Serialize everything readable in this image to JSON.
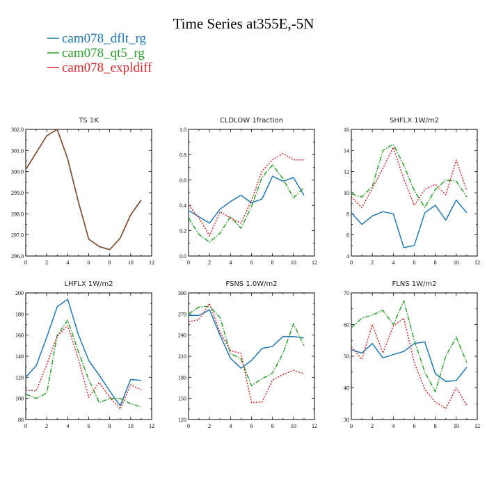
{
  "figure_title": "Time Series at355E,-5N",
  "legend": [
    {
      "label": "cam078_dflt_rg",
      "color": "#1f77b4"
    },
    {
      "label": "cam078_qt5_rg",
      "color": "#2ca02c"
    },
    {
      "label": "cam078_expldiff",
      "color": "#d62728"
    }
  ],
  "chart_data": [
    {
      "type": "line",
      "title": "TS   1K",
      "x": [
        0,
        1,
        2,
        3,
        4,
        5,
        6,
        7,
        8,
        9,
        10,
        11
      ],
      "xlim": [
        0,
        12
      ],
      "xticks": [
        0,
        2,
        4,
        6,
        8,
        10,
        12
      ],
      "ylim": [
        296.0,
        302.0
      ],
      "yticks": [
        296.0,
        297.0,
        298.0,
        299.0,
        300.0,
        301.0,
        302.0
      ],
      "ytick_labels": [
        "296.0",
        "297.0",
        "298.0",
        "299.0",
        "300.0",
        "301.0",
        "302.0"
      ],
      "series": [
        {
          "name": "cam078_dflt_rg",
          "style": "solid",
          "values": [
            300.1,
            300.9,
            301.7,
            302.0,
            300.6,
            298.6,
            296.8,
            296.45,
            296.3,
            296.85,
            297.95,
            298.65
          ]
        },
        {
          "name": "cam078_qt5_rg",
          "style": "dashdot",
          "values": [
            300.1,
            300.9,
            301.7,
            302.0,
            300.6,
            298.6,
            296.8,
            296.45,
            296.3,
            296.85,
            297.95,
            298.65
          ]
        },
        {
          "name": "cam078_expldiff",
          "style": "dotted",
          "values": [
            300.1,
            300.9,
            301.7,
            302.0,
            300.6,
            298.6,
            296.8,
            296.45,
            296.3,
            296.85,
            297.95,
            298.65
          ]
        }
      ]
    },
    {
      "type": "line",
      "title": "CLDLOW   1fraction",
      "x": [
        0,
        1,
        2,
        3,
        4,
        5,
        6,
        7,
        8,
        9,
        10,
        11
      ],
      "xlim": [
        0,
        12
      ],
      "xticks": [
        0,
        2,
        4,
        6,
        8,
        10,
        12
      ],
      "ylim": [
        0.0,
        1.0
      ],
      "yticks": [
        0.0,
        0.2,
        0.4,
        0.6,
        0.8,
        1.0
      ],
      "ytick_labels": [
        "0.0",
        "0.2",
        "0.4",
        "0.6",
        "0.8",
        "1.0"
      ],
      "series": [
        {
          "name": "cam078_dflt_rg",
          "style": "solid",
          "values": [
            0.36,
            0.31,
            0.26,
            0.37,
            0.43,
            0.48,
            0.42,
            0.45,
            0.63,
            0.59,
            0.62,
            0.48
          ]
        },
        {
          "name": "cam078_qt5_rg",
          "style": "dashdot",
          "values": [
            0.3,
            0.17,
            0.11,
            0.18,
            0.31,
            0.22,
            0.39,
            0.62,
            0.72,
            0.61,
            0.46,
            0.54
          ]
        },
        {
          "name": "cam078_expldiff",
          "style": "dotted",
          "values": [
            0.4,
            0.3,
            0.16,
            0.35,
            0.3,
            0.26,
            0.44,
            0.67,
            0.76,
            0.81,
            0.76,
            0.76
          ]
        }
      ]
    },
    {
      "type": "line",
      "title": "SHFLX   1W/m2",
      "x": [
        0,
        1,
        2,
        3,
        4,
        5,
        6,
        7,
        8,
        9,
        10,
        11
      ],
      "xlim": [
        0,
        12
      ],
      "xticks": [
        0,
        2,
        4,
        6,
        8,
        10,
        12
      ],
      "ylim": [
        4,
        16
      ],
      "yticks": [
        4,
        6,
        8,
        10,
        12,
        14,
        16
      ],
      "ytick_labels": [
        "4",
        "6",
        "8",
        "10",
        "12",
        "14",
        "16"
      ],
      "series": [
        {
          "name": "cam078_dflt_rg",
          "style": "solid",
          "values": [
            8.1,
            7.0,
            7.8,
            8.2,
            8.0,
            4.8,
            5.0,
            8.1,
            8.8,
            7.4,
            9.3,
            8.1
          ]
        },
        {
          "name": "cam078_qt5_rg",
          "style": "dashdot",
          "values": [
            9.9,
            9.6,
            10.6,
            14.0,
            14.6,
            12.6,
            10.2,
            8.6,
            10.3,
            11.2,
            11.1,
            9.6
          ]
        },
        {
          "name": "cam078_expldiff",
          "style": "dotted",
          "values": [
            9.6,
            8.6,
            10.4,
            12.3,
            14.3,
            11.3,
            8.8,
            10.3,
            10.8,
            9.8,
            13.1,
            10.2
          ]
        }
      ]
    },
    {
      "type": "line",
      "title": "LHFLX   1W/m2",
      "x": [
        0,
        1,
        2,
        3,
        4,
        5,
        6,
        7,
        8,
        9,
        10,
        11
      ],
      "xlim": [
        0,
        12
      ],
      "xticks": [
        0,
        2,
        4,
        6,
        8,
        10,
        12
      ],
      "ylim": [
        80,
        200
      ],
      "yticks": [
        80,
        100,
        120,
        140,
        160,
        180,
        200
      ],
      "ytick_labels": [
        "80",
        "100",
        "120",
        "140",
        "160",
        "180",
        "200"
      ],
      "series": [
        {
          "name": "cam078_dflt_rg",
          "style": "solid",
          "values": [
            120,
            131,
            158,
            187,
            194,
            161,
            136,
            122,
            107,
            93,
            118,
            117
          ]
        },
        {
          "name": "cam078_qt5_rg",
          "style": "dashdot",
          "values": [
            104,
            100,
            105,
            160,
            174,
            145,
            118,
            96,
            100,
            100,
            95,
            92
          ]
        },
        {
          "name": "cam078_expldiff",
          "style": "dotted",
          "values": [
            108,
            107,
            132,
            159,
            169,
            138,
            101,
            115,
            101,
            90,
            113,
            108
          ]
        }
      ]
    },
    {
      "type": "line",
      "title": "FSNS   1.0W/m2",
      "x": [
        0,
        1,
        2,
        3,
        4,
        5,
        6,
        7,
        8,
        9,
        10,
        11
      ],
      "xlim": [
        0,
        12
      ],
      "xticks": [
        0,
        2,
        4,
        6,
        8,
        10,
        12
      ],
      "ylim": [
        120,
        300
      ],
      "yticks": [
        120,
        150,
        180,
        210,
        240,
        270,
        300
      ],
      "ytick_labels": [
        "120",
        "150",
        "180",
        "210",
        "240",
        "270",
        "300"
      ],
      "series": [
        {
          "name": "cam078_dflt_rg",
          "style": "solid",
          "values": [
            268,
            268,
            276,
            240,
            207,
            193,
            204,
            221,
            224,
            238,
            238,
            236
          ]
        },
        {
          "name": "cam078_qt5_rg",
          "style": "dashdot",
          "values": [
            270,
            280,
            281,
            265,
            214,
            206,
            168,
            178,
            186,
            214,
            256,
            225
          ]
        },
        {
          "name": "cam078_expldiff",
          "style": "dotted",
          "values": [
            259,
            262,
            285,
            244,
            218,
            214,
            144,
            145,
            176,
            184,
            190,
            185
          ]
        }
      ]
    },
    {
      "type": "line",
      "title": "FLNS   1W/m2",
      "x": [
        0,
        1,
        2,
        3,
        4,
        5,
        6,
        7,
        8,
        9,
        10,
        11
      ],
      "xlim": [
        0,
        12
      ],
      "xticks": [
        0,
        2,
        4,
        6,
        8,
        10,
        12
      ],
      "ylim": [
        30,
        70
      ],
      "yticks": [
        30,
        40,
        50,
        60,
        70
      ],
      "ytick_labels": [
        "30",
        "40",
        "50",
        "60",
        "70"
      ],
      "series": [
        {
          "name": "cam078_dflt_rg",
          "style": "solid",
          "values": [
            52,
            51,
            54,
            49.5,
            50.5,
            51.5,
            54,
            54.5,
            44.5,
            42,
            42.3,
            46.5
          ]
        },
        {
          "name": "cam078_qt5_rg",
          "style": "dashdot",
          "values": [
            59,
            62,
            63,
            64.5,
            60,
            67.5,
            55,
            45,
            38.8,
            50,
            56,
            48
          ]
        },
        {
          "name": "cam078_expldiff",
          "style": "dotted",
          "values": [
            53,
            49,
            60,
            51,
            59.5,
            62,
            48,
            39.5,
            35.5,
            33.5,
            40,
            34.5
          ]
        }
      ]
    }
  ]
}
